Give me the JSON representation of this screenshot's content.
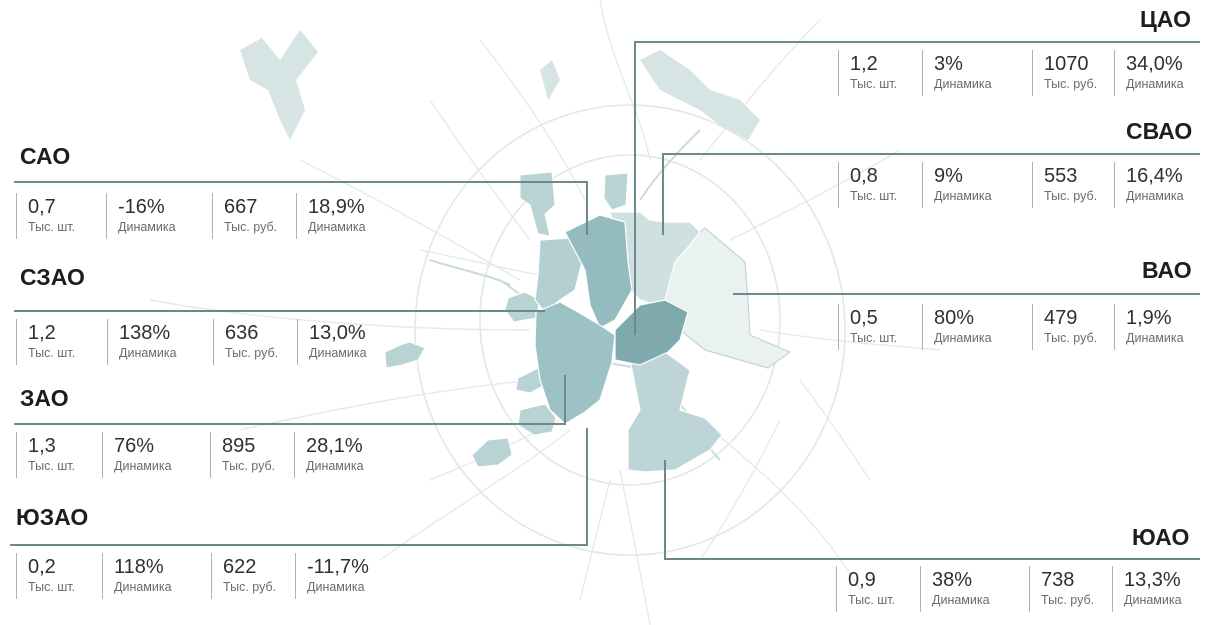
{
  "map": {
    "colors": {
      "background": "#ffffff",
      "roads": "#e6eaea",
      "water": "#d6e4e3",
      "outer": "#b9d2d4",
      "sao": "#94bcc0",
      "cao": "#7ea9ad",
      "vao": "#e9f1f1",
      "svao": "#cfe0e1",
      "zao": "#9cc2c5",
      "yuao": "#bdd5d7",
      "leader": "#6b8a8c"
    }
  },
  "districts": [
    {
      "id": "cao",
      "name": "ЦАО",
      "count": "1,2",
      "count_label": "Тыс. шт.",
      "count_dyn": "3%",
      "count_dyn_label": "Динамика",
      "price": "1070",
      "price_label": "Тыс. руб.",
      "price_dyn": "34,0%",
      "price_dyn_label": "Динамика"
    },
    {
      "id": "svao",
      "name": "СВАО",
      "count": "0,8",
      "count_label": "Тыс. шт.",
      "count_dyn": "9%",
      "count_dyn_label": "Динамика",
      "price": "553",
      "price_label": "Тыс. руб.",
      "price_dyn": "16,4%",
      "price_dyn_label": "Динамика"
    },
    {
      "id": "vao",
      "name": "ВАО",
      "count": "0,5",
      "count_label": "Тыс. шт.",
      "count_dyn": "80%",
      "count_dyn_label": "Динамика",
      "price": "479",
      "price_label": "Тыс. руб.",
      "price_dyn": "1,9%",
      "price_dyn_label": "Динамика"
    },
    {
      "id": "yuao",
      "name": "ЮАО",
      "count": "0,9",
      "count_label": "Тыс. шт.",
      "count_dyn": "38%",
      "count_dyn_label": "Динамика",
      "price": "738",
      "price_label": "Тыс. руб.",
      "price_dyn": "13,3%",
      "price_dyn_label": "Динамика"
    },
    {
      "id": "sao",
      "name": "САО",
      "count": "0,7",
      "count_label": "Тыс. шт.",
      "count_dyn": "-16%",
      "count_dyn_label": "Динамика",
      "price": "667",
      "price_label": "Тыс. руб.",
      "price_dyn": "18,9%",
      "price_dyn_label": "Динамика"
    },
    {
      "id": "szao",
      "name": "СЗАО",
      "count": "1,2",
      "count_label": "Тыс. шт.",
      "count_dyn": "138%",
      "count_dyn_label": "Динамика",
      "price": "636",
      "price_label": "Тыс. руб.",
      "price_dyn": "13,0%",
      "price_dyn_label": "Динамика"
    },
    {
      "id": "zao",
      "name": "ЗАО",
      "count": "1,3",
      "count_label": "Тыс. шт.",
      "count_dyn": "76%",
      "count_dyn_label": "Динамика",
      "price": "895",
      "price_label": "Тыс. руб.",
      "price_dyn": "28,1%",
      "price_dyn_label": "Динамика"
    },
    {
      "id": "yuzao",
      "name": "ЮЗАО",
      "count": "0,2",
      "count_label": "Тыс. шт.",
      "count_dyn": "118%",
      "count_dyn_label": "Динамика",
      "price": "622",
      "price_label": "Тыс. руб.",
      "price_dyn": "-11,7%",
      "price_dyn_label": "Динамика"
    }
  ]
}
